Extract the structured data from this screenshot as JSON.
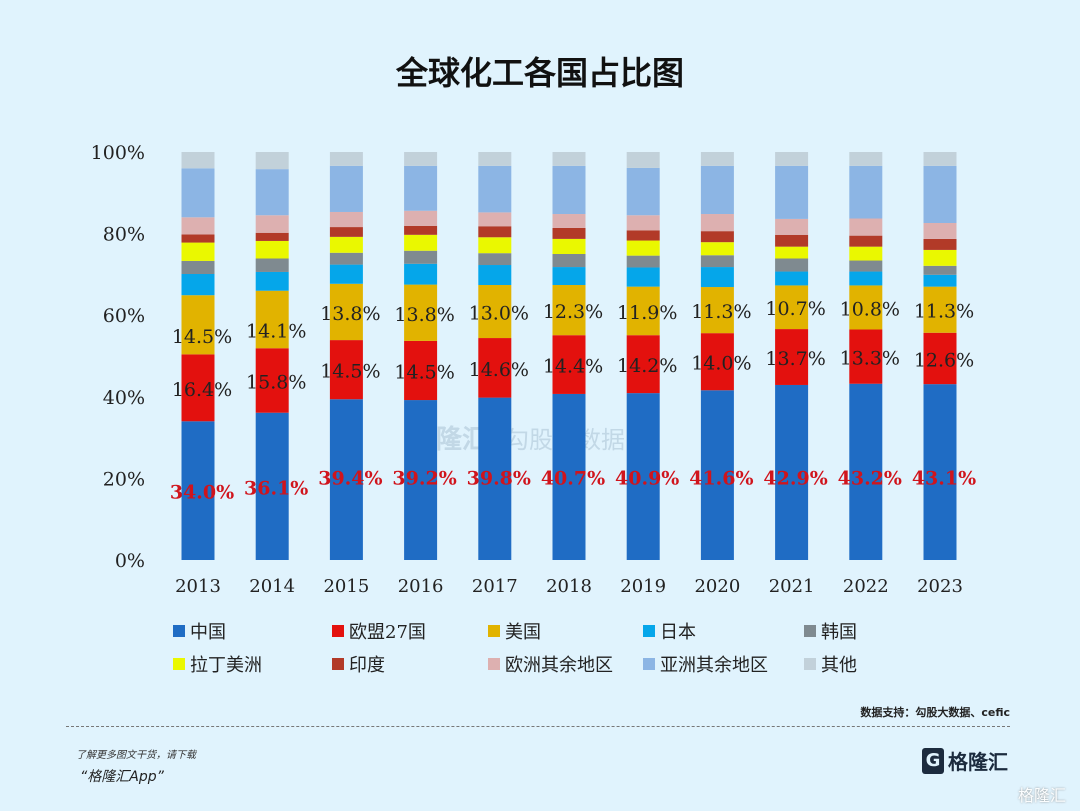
{
  "chart_data": {
    "type": "bar",
    "stacked": true,
    "title": "全球化工各国占比图",
    "categories": [
      "2013",
      "2014",
      "2015",
      "2016",
      "2017",
      "2018",
      "2019",
      "2020",
      "2021",
      "2022",
      "2023"
    ],
    "ylim": [
      0,
      100
    ],
    "yticks": [
      "0%",
      "20%",
      "40%",
      "60%",
      "80%",
      "100%"
    ],
    "grid": false,
    "legend_position": "bottom",
    "series": [
      {
        "name": "中国",
        "color": "#1f6cc4",
        "values": [
          34.0,
          36.1,
          39.4,
          39.2,
          39.8,
          40.7,
          40.9,
          41.6,
          42.9,
          43.2,
          43.1
        ],
        "labeled": true
      },
      {
        "name": "欧盟27国",
        "color": "#e3110e",
        "values": [
          16.4,
          15.8,
          14.5,
          14.5,
          14.6,
          14.4,
          14.2,
          14.0,
          13.7,
          13.3,
          12.6
        ],
        "labeled": true
      },
      {
        "name": "美国",
        "color": "#e1b300",
        "values": [
          14.5,
          14.1,
          13.8,
          13.8,
          13.0,
          12.3,
          11.9,
          11.3,
          10.7,
          10.8,
          11.3
        ],
        "labeled": true
      },
      {
        "name": "日本",
        "color": "#05a6ea",
        "values": [
          5.2,
          4.6,
          4.7,
          5.1,
          4.9,
          4.4,
          4.7,
          4.9,
          3.4,
          3.4,
          2.9
        ]
      },
      {
        "name": "韩国",
        "color": "#7f8a90",
        "values": [
          3.2,
          3.3,
          2.9,
          3.2,
          2.9,
          3.2,
          2.9,
          2.9,
          3.2,
          2.7,
          2.2
        ]
      },
      {
        "name": "拉丁美洲",
        "color": "#eaf800",
        "values": [
          4.5,
          4.3,
          3.9,
          3.9,
          3.9,
          3.7,
          3.7,
          3.2,
          2.9,
          3.4,
          3.9
        ]
      },
      {
        "name": "印度",
        "color": "#b23a28",
        "values": [
          2.0,
          2.0,
          2.4,
          2.2,
          2.7,
          2.7,
          2.5,
          2.7,
          2.9,
          2.7,
          2.7
        ]
      },
      {
        "name": "欧洲其余地区",
        "color": "#ddb0b0",
        "values": [
          4.2,
          4.3,
          3.7,
          3.7,
          3.4,
          3.4,
          3.7,
          4.2,
          3.9,
          4.2,
          3.9
        ]
      },
      {
        "name": "亚洲其余地区",
        "color": "#8cb5e4",
        "values": [
          12.0,
          11.3,
          11.3,
          11.0,
          11.4,
          11.8,
          11.6,
          11.8,
          13.0,
          12.9,
          14.0
        ]
      },
      {
        "name": "其他",
        "color": "#c2d1da",
        "values": [
          4.0,
          4.2,
          3.4,
          3.4,
          3.4,
          3.4,
          3.9,
          3.4,
          3.4,
          3.4,
          3.4
        ]
      }
    ],
    "labels": {
      "中国": [
        "34.0%",
        "36.1%",
        "39.4%",
        "39.2%",
        "39.8%",
        "40.7%",
        "40.9%",
        "41.6%",
        "42.9%",
        "43.2%",
        "43.1%"
      ],
      "欧盟27国": [
        "16.4%",
        "15.8%",
        "14.5%",
        "14.5%",
        "14.6%",
        "14.4%",
        "14.2%",
        "14.0%",
        "13.7%",
        "13.3%",
        "12.6%"
      ],
      "美国": [
        "14.5%",
        "14.1%",
        "13.8%",
        "13.8%",
        "13.0%",
        "12.3%",
        "11.9%",
        "11.3%",
        "10.7%",
        "10.8%",
        "11.3%"
      ]
    },
    "label_colors": {
      "中国": "#d0141c",
      "other": "#222222"
    }
  },
  "watermark": {
    "brand": "格隆汇",
    "partner": "勾股大数据"
  },
  "footer": {
    "source": "数据支持：勾股大数据、cefic",
    "promo_line1": "了解更多图文干货，请下载",
    "promo_line2": "“格隆汇App”",
    "logo_text": "格隆汇",
    "corner_watermark": "格隆汇"
  }
}
